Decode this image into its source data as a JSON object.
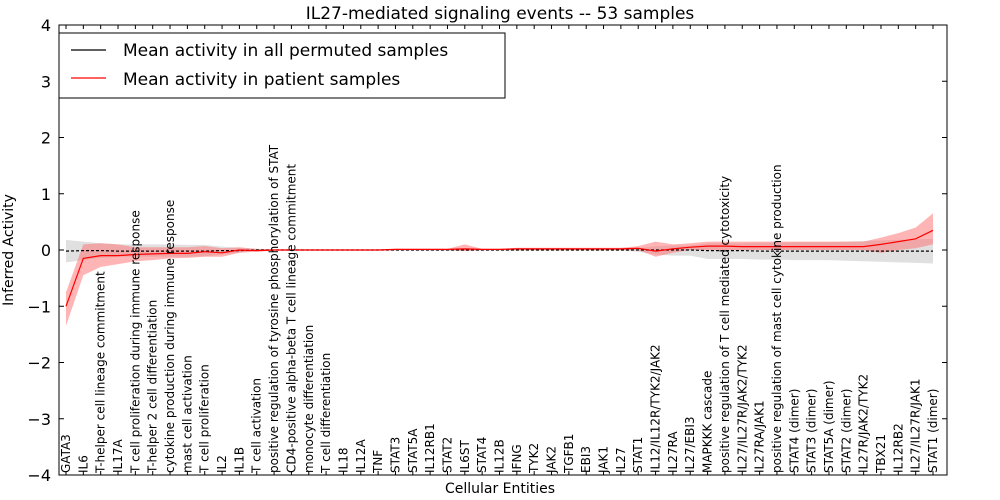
{
  "chart_data": {
    "type": "line",
    "title": "IL27-mediated signaling events -- 53 samples",
    "xlabel": "Cellular Entities",
    "ylabel": "Inferred Activity",
    "ylim": [
      -4,
      4
    ],
    "yticks": [
      "4",
      "3",
      "2",
      "1",
      "0",
      "−1",
      "−2",
      "−3",
      "−4"
    ],
    "grid": false,
    "legend_position": "top-left",
    "legend": [
      {
        "label": "Mean activity in all permuted samples",
        "color": "#000000"
      },
      {
        "label": "Mean activity in patient samples",
        "color": "#ff0000"
      }
    ],
    "categories": [
      "GATA3",
      "IL6",
      "T-helper cell lineage commitment",
      "IL17A",
      "T cell proliferation during immune response",
      "T-helper 2 cell differentiation",
      "cytokine production during immune response",
      "mast cell activation",
      "T cell proliferation",
      "IL2",
      "IL1B",
      "T cell activation",
      "positive regulation of tyrosine phosphorylation of STAT",
      "CD4-positive alpha-beta T cell lineage commitment",
      "monocyte differentiation",
      "T cell differentiation",
      "IL18",
      "IL12A",
      "TNF",
      "STAT3",
      "STAT5A",
      "IL12RB1",
      "STAT2",
      "IL6ST",
      "STAT4",
      "IL12B",
      "IFNG",
      "TYK2",
      "JAK2",
      "TGFB1",
      "EBI3",
      "JAK1",
      "IL27",
      "STAT1",
      "IL12/IL12R/TYK2/JAK2",
      "IL27RA",
      "IL27/EBI3",
      "MAPKKK cascade",
      "positive regulation of T cell mediated cytotoxicity",
      "IL27/IL27R/JAK2/TYK2",
      "IL27RA/JAK1",
      "positive regulation of mast cell cytokine production",
      "STAT4 (dimer)",
      "STAT3 (dimer)",
      "STAT5A (dimer)",
      "STAT2 (dimer)",
      "IL27R/JAK2/TYK2",
      "TBX21",
      "IL12RB2",
      "IL27/IL27R/JAK1",
      "STAT1 (dimer)"
    ],
    "series": [
      {
        "name": "Mean activity in all permuted samples",
        "color": "#000000",
        "values": [
          -0.02,
          -0.01,
          -0.01,
          -0.02,
          -0.02,
          -0.02,
          -0.02,
          -0.02,
          -0.02,
          -0.01,
          -0.01,
          0,
          0,
          0,
          0,
          0,
          0,
          0,
          0,
          0,
          0,
          0,
          0,
          0,
          0,
          0,
          0,
          0,
          0,
          0,
          0,
          0,
          0,
          0,
          0,
          0,
          0,
          -0.01,
          -0.01,
          -0.01,
          -0.02,
          -0.02,
          -0.02,
          -0.02,
          -0.02,
          -0.02,
          -0.02,
          -0.02,
          -0.02,
          -0.02,
          -0.02
        ],
        "lower": [
          -0.22,
          -0.18,
          -0.14,
          -0.12,
          -0.12,
          -0.12,
          -0.12,
          -0.12,
          -0.11,
          -0.08,
          -0.05,
          -0.02,
          -0.01,
          -0.01,
          -0.01,
          -0.01,
          -0.01,
          -0.01,
          -0.01,
          -0.01,
          -0.01,
          -0.01,
          -0.01,
          -0.01,
          -0.01,
          -0.01,
          -0.01,
          -0.01,
          -0.01,
          -0.01,
          -0.01,
          -0.01,
          -0.01,
          -0.03,
          -0.08,
          -0.1,
          -0.1,
          -0.16,
          -0.16,
          -0.16,
          -0.17,
          -0.17,
          -0.18,
          -0.18,
          -0.18,
          -0.19,
          -0.2,
          -0.21,
          -0.22,
          -0.23,
          -0.24
        ],
        "upper": [
          0.18,
          0.15,
          0.12,
          0.1,
          0.1,
          0.1,
          0.1,
          0.09,
          0.09,
          0.06,
          0.04,
          0.02,
          0.01,
          0.01,
          0.01,
          0.01,
          0.01,
          0.01,
          0.01,
          0.01,
          0.01,
          0.01,
          0.01,
          0.01,
          0.01,
          0.01,
          0.01,
          0.01,
          0.01,
          0.01,
          0.01,
          0.01,
          0.01,
          0.03,
          0.07,
          0.08,
          0.08,
          0.12,
          0.12,
          0.12,
          0.13,
          0.13,
          0.14,
          0.14,
          0.14,
          0.15,
          0.16,
          0.17,
          0.18,
          0.19,
          0.2
        ]
      },
      {
        "name": "Mean activity in patient samples",
        "color": "#ff0000",
        "values": [
          -1.0,
          -0.15,
          -0.1,
          -0.1,
          -0.08,
          -0.07,
          -0.06,
          -0.06,
          -0.03,
          -0.05,
          0,
          -0.01,
          0,
          0,
          0,
          0,
          0,
          0,
          0,
          0.01,
          0.01,
          0.01,
          0.01,
          0.02,
          0.01,
          0.01,
          0.02,
          0.02,
          0.02,
          0.02,
          0.02,
          0.02,
          0.02,
          0.03,
          -0.02,
          0.02,
          0.05,
          0.07,
          0.07,
          0.06,
          0.06,
          0.06,
          0.06,
          0.06,
          0.06,
          0.06,
          0.06,
          0.1,
          0.15,
          0.2,
          0.35
        ],
        "lower": [
          -1.35,
          -0.45,
          -0.3,
          -0.25,
          -0.2,
          -0.18,
          -0.15,
          -0.14,
          -0.12,
          -0.12,
          -0.05,
          -0.03,
          -0.01,
          -0.01,
          -0.01,
          -0.01,
          -0.01,
          -0.01,
          -0.01,
          0,
          0,
          0,
          0,
          -0.02,
          0,
          0,
          0,
          0,
          0,
          0,
          0,
          0,
          0,
          0,
          -0.12,
          -0.05,
          0,
          0,
          0,
          0,
          0,
          0,
          0,
          0,
          0,
          0,
          0,
          -0.05,
          0,
          0.03,
          0.1
        ],
        "upper": [
          -0.75,
          0.1,
          0.12,
          0.1,
          0.05,
          0.05,
          0.05,
          0.05,
          0.07,
          0.03,
          0.05,
          0.02,
          0.01,
          0.01,
          0.01,
          0.01,
          0.01,
          0.01,
          0.01,
          0.02,
          0.02,
          0.02,
          0.02,
          0.1,
          0.02,
          0.02,
          0.04,
          0.04,
          0.04,
          0.04,
          0.04,
          0.04,
          0.04,
          0.07,
          0.15,
          0.1,
          0.12,
          0.15,
          0.15,
          0.15,
          0.15,
          0.15,
          0.15,
          0.15,
          0.15,
          0.15,
          0.15,
          0.22,
          0.3,
          0.4,
          0.65
        ]
      }
    ]
  }
}
